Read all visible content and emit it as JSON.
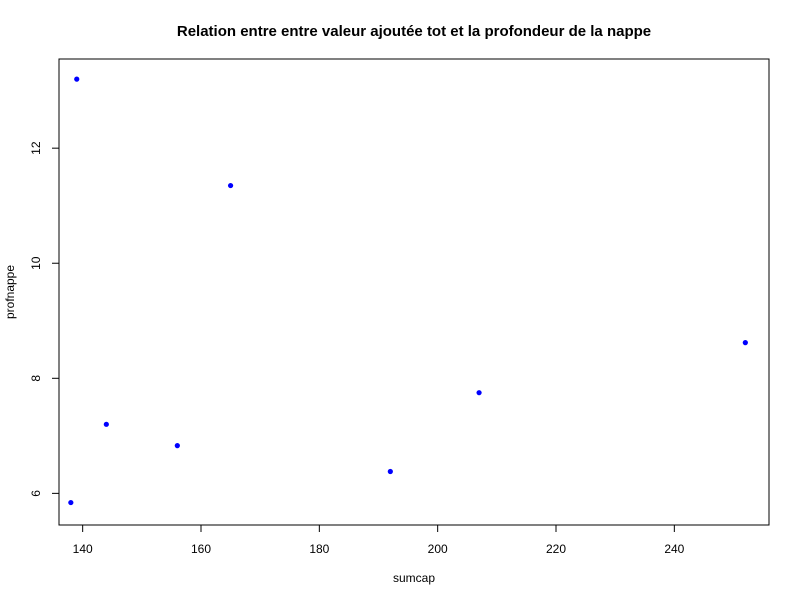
{
  "chart_data": {
    "type": "scatter",
    "title": "Relation entre entre valeur ajoutée tot et la profondeur de la nappe",
    "xlabel": "sumcap",
    "ylabel": "profnappe",
    "xlim": [
      136,
      256
    ],
    "ylim": [
      5.45,
      13.55
    ],
    "x_ticks": [
      140,
      160,
      180,
      200,
      220,
      240
    ],
    "y_ticks": [
      6,
      8,
      10,
      12
    ],
    "grid": false,
    "point_color": "#0000ff",
    "points": [
      {
        "x": 139,
        "y": 13.2
      },
      {
        "x": 165,
        "y": 11.35
      },
      {
        "x": 252,
        "y": 8.62
      },
      {
        "x": 207,
        "y": 7.75
      },
      {
        "x": 144,
        "y": 7.2
      },
      {
        "x": 156,
        "y": 6.83
      },
      {
        "x": 192,
        "y": 6.38
      },
      {
        "x": 138,
        "y": 5.84
      }
    ]
  }
}
